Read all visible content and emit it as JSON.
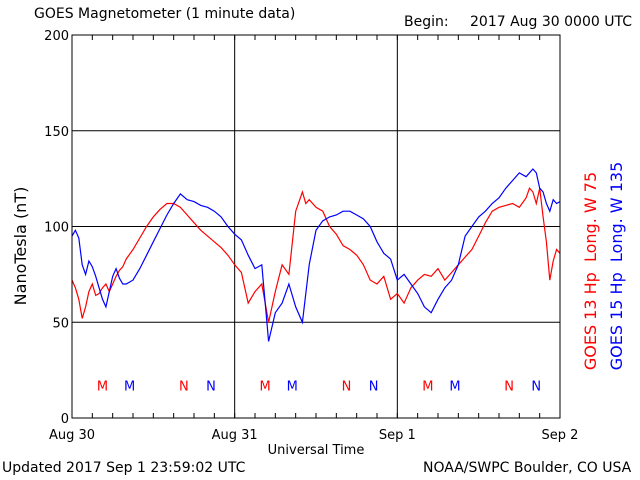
{
  "header": {
    "title": "GOES Magnetometer (1 minute data)",
    "begin_label": "Begin:",
    "begin_value": "2017 Aug 30 0000 UTC"
  },
  "footer": {
    "updated": "Updated 2017 Sep  1 23:59:02 UTC",
    "credit": "NOAA/SWPC Boulder, CO USA"
  },
  "colors": {
    "goes13": "#ff0000",
    "goes15": "#0000ff",
    "axis": "#000000"
  },
  "chart_data": {
    "type": "line",
    "ylabel": "NanoTesla (nT)",
    "xlabel": "Universal Time",
    "ylim": [
      0,
      200
    ],
    "yticks": [
      0,
      50,
      100,
      150,
      200
    ],
    "xlim": [
      0,
      72
    ],
    "x_unit": "hours since 2017 Aug 30 0000 UTC",
    "xticks": [
      {
        "hour": 0,
        "label": "Aug 30"
      },
      {
        "hour": 24,
        "label": "Aug 31"
      },
      {
        "hour": 48,
        "label": "Sep 1"
      },
      {
        "hour": 72,
        "label": "Sep 2"
      }
    ],
    "grid": true,
    "series": [
      {
        "name": "GOES 13 Hp  Long. W 75",
        "color": "#ff0000",
        "x": [
          0,
          0.5,
          1,
          1.5,
          2,
          2.5,
          3,
          3.5,
          4,
          4.5,
          5,
          5.5,
          6,
          6.5,
          7,
          7.5,
          8,
          9,
          10,
          11,
          12,
          13,
          14,
          15,
          16,
          17,
          18,
          19,
          20,
          21,
          22,
          23,
          24,
          25,
          26,
          27,
          28,
          29,
          30,
          31,
          32,
          33,
          34,
          34.5,
          35,
          36,
          37,
          38,
          39,
          40,
          41,
          42,
          43,
          44,
          45,
          46,
          47,
          48,
          49,
          50,
          51,
          52,
          53,
          54,
          55,
          56,
          57,
          58,
          59,
          60,
          61,
          62,
          63,
          64,
          65,
          66,
          67,
          67.5,
          68,
          68.5,
          69,
          69.5,
          70,
          70.5,
          71,
          71.5,
          72
        ],
        "values": [
          72,
          68,
          62,
          52,
          58,
          66,
          70,
          64,
          65,
          68,
          70,
          66,
          70,
          74,
          77,
          79,
          83,
          88,
          94,
          100,
          105,
          109,
          112,
          112,
          110,
          106,
          102,
          98,
          95,
          92,
          89,
          85,
          80,
          76,
          60,
          66,
          70,
          50,
          66,
          80,
          75,
          108,
          118,
          112,
          114,
          110,
          108,
          100,
          96,
          90,
          88,
          85,
          80,
          72,
          70,
          74,
          62,
          65,
          60,
          68,
          72,
          75,
          74,
          78,
          72,
          76,
          80,
          84,
          88,
          95,
          102,
          108,
          110,
          111,
          112,
          110,
          115,
          120,
          118,
          112,
          120,
          105,
          92,
          72,
          82,
          88,
          86
        ]
      },
      {
        "name": "GOES 15 Hp  Long. W 135",
        "color": "#0000ff",
        "x": [
          0,
          0.5,
          1,
          1.5,
          2,
          2.5,
          3,
          3.5,
          4,
          4.5,
          5,
          5.5,
          6,
          6.5,
          7,
          7.5,
          8,
          9,
          10,
          11,
          12,
          13,
          14,
          15,
          16,
          17,
          18,
          19,
          20,
          21,
          22,
          23,
          24,
          25,
          26,
          27,
          28,
          29,
          30,
          31,
          32,
          33,
          34,
          35,
          36,
          37,
          38,
          39,
          40,
          41,
          42,
          43,
          44,
          45,
          46,
          47,
          48,
          49,
          50,
          51,
          52,
          53,
          54,
          55,
          56,
          57,
          58,
          59,
          60,
          61,
          62,
          63,
          64,
          65,
          66,
          67,
          68,
          68.5,
          69,
          69.5,
          70,
          70.5,
          71,
          71.5,
          72
        ],
        "values": [
          95,
          98,
          94,
          80,
          75,
          82,
          79,
          74,
          68,
          62,
          58,
          66,
          74,
          78,
          73,
          70,
          70,
          72,
          78,
          85,
          92,
          99,
          106,
          112,
          117,
          114,
          113,
          111,
          110,
          108,
          105,
          100,
          96,
          93,
          85,
          78,
          80,
          40,
          55,
          60,
          70,
          58,
          50,
          80,
          98,
          103,
          105,
          106,
          108,
          108,
          106,
          104,
          100,
          92,
          86,
          83,
          72,
          75,
          70,
          65,
          58,
          55,
          62,
          68,
          72,
          80,
          95,
          100,
          105,
          108,
          112,
          115,
          120,
          124,
          128,
          126,
          130,
          128,
          120,
          118,
          112,
          108,
          114,
          112,
          113
        ]
      }
    ],
    "annotations": [
      {
        "text": "M",
        "hour": 4.5,
        "y": 17,
        "series": 0
      },
      {
        "text": "M",
        "hour": 8.5,
        "y": 17,
        "series": 1
      },
      {
        "text": "N",
        "hour": 16.5,
        "y": 17,
        "series": 0
      },
      {
        "text": "N",
        "hour": 20.5,
        "y": 17,
        "series": 1
      },
      {
        "text": "M",
        "hour": 28.5,
        "y": 17,
        "series": 0
      },
      {
        "text": "M",
        "hour": 32.5,
        "y": 17,
        "series": 1
      },
      {
        "text": "N",
        "hour": 40.5,
        "y": 17,
        "series": 0
      },
      {
        "text": "N",
        "hour": 44.5,
        "y": 17,
        "series": 1
      },
      {
        "text": "M",
        "hour": 52.5,
        "y": 17,
        "series": 0
      },
      {
        "text": "M",
        "hour": 56.5,
        "y": 17,
        "series": 1
      },
      {
        "text": "N",
        "hour": 64.5,
        "y": 17,
        "series": 0
      },
      {
        "text": "N",
        "hour": 68.5,
        "y": 17,
        "series": 1
      }
    ]
  }
}
